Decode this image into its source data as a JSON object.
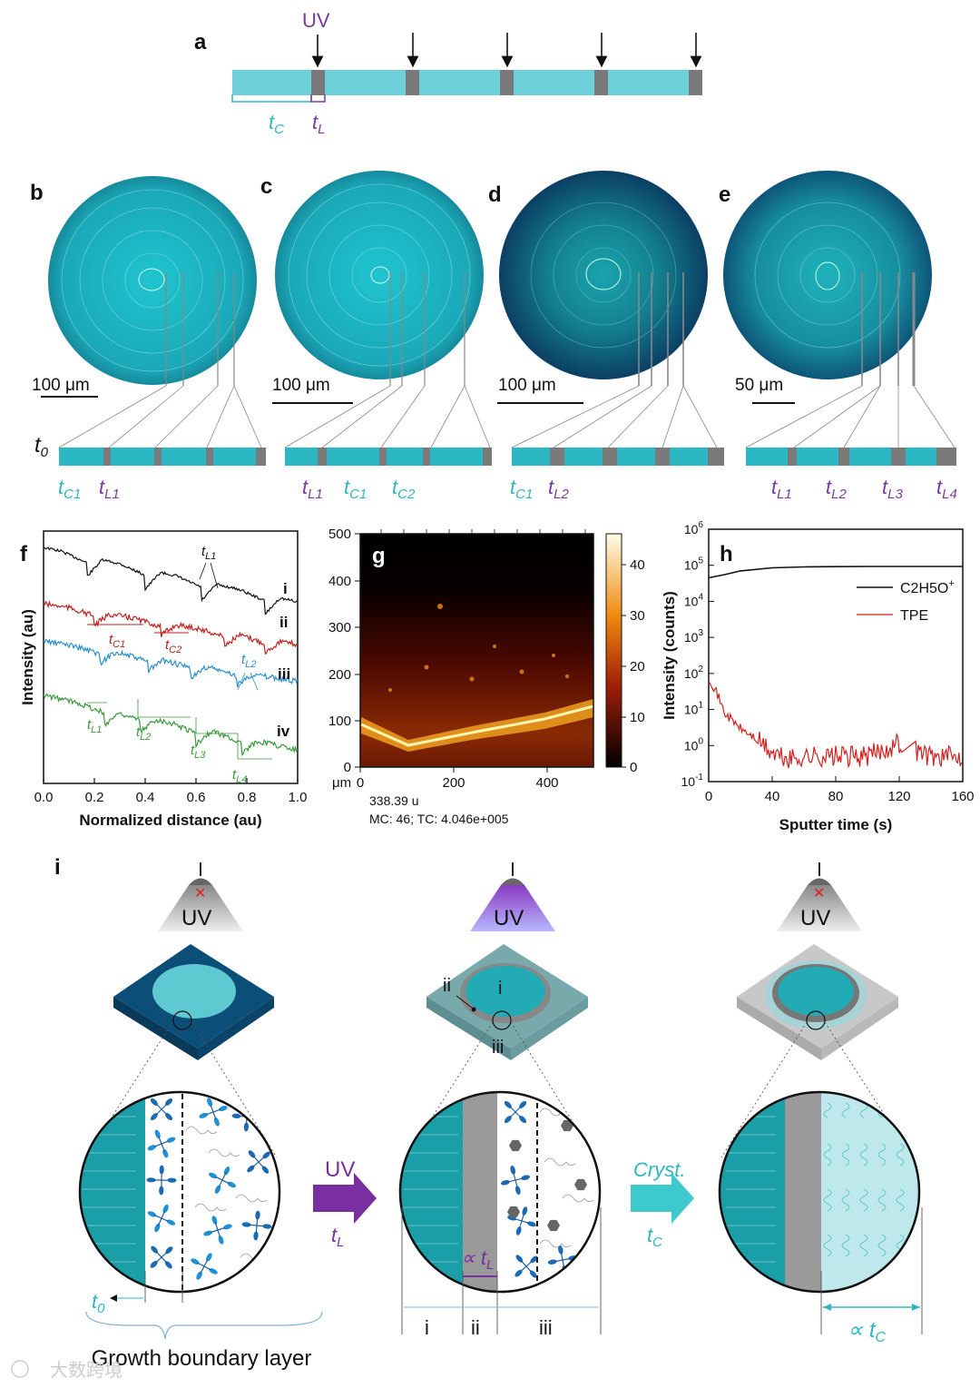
{
  "panels": {
    "a": "a",
    "b": "b",
    "c": "c",
    "d": "d",
    "e": "e",
    "f": "f",
    "g": "g",
    "h": "h",
    "i": "i"
  },
  "panel_a": {
    "uv_label": "UV",
    "tc_label": "t",
    "tc_sub": "C",
    "tl_label": "t",
    "tl_sub": "L"
  },
  "panel_b": {
    "scale": "100 μm",
    "t0": "t",
    "t0_sub": "0",
    "labels": [
      {
        "t": "t",
        "s": "C1",
        "c": "teal"
      },
      {
        "t": "t",
        "s": "L1",
        "c": "purp"
      }
    ]
  },
  "panel_c": {
    "scale": "100 μm",
    "labels": [
      {
        "t": "t",
        "s": "L1",
        "c": "purp"
      },
      {
        "t": "t",
        "s": "C1",
        "c": "teal"
      },
      {
        "t": "t",
        "s": "C2",
        "c": "teal"
      }
    ]
  },
  "panel_d": {
    "scale": "100 μm",
    "labels": [
      {
        "t": "t",
        "s": "C1",
        "c": "teal"
      },
      {
        "t": "t",
        "s": "L2",
        "c": "purp"
      }
    ]
  },
  "panel_e": {
    "scale": "50 μm",
    "labels": [
      {
        "t": "t",
        "s": "L1",
        "c": "purp"
      },
      {
        "t": "t",
        "s": "L2",
        "c": "purp"
      },
      {
        "t": "t",
        "s": "L3",
        "c": "purp"
      },
      {
        "t": "t",
        "s": "L4",
        "c": "purp"
      }
    ]
  },
  "chart_data": [
    {
      "panel": "f",
      "type": "line",
      "xlabel": "Normalized distance (au)",
      "ylabel": "Intensity (au)",
      "xlim": [
        0,
        1
      ],
      "xticks": [
        "0.0",
        "0.2",
        "0.4",
        "0.6",
        "0.8",
        "1.0"
      ],
      "series": [
        {
          "name": "i",
          "color": "#111111",
          "annotations": [
            "t_L1"
          ]
        },
        {
          "name": "ii",
          "color": "#c0221f",
          "annotations": [
            "t_C1",
            "t_C2"
          ]
        },
        {
          "name": "iii",
          "color": "#2a8fca",
          "annotations": [
            "t_L2"
          ]
        },
        {
          "name": "iv",
          "color": "#3a9a3a",
          "annotations": [
            "t_L1",
            "t_L2",
            "t_L3",
            "t_L4"
          ]
        }
      ]
    },
    {
      "panel": "g",
      "type": "heatmap",
      "xunit": "μm",
      "xticks": [
        "0",
        "200",
        "400"
      ],
      "yticks": [
        "0",
        "100",
        "200",
        "300",
        "400",
        "500"
      ],
      "colorbar_ticks": [
        "0",
        "10",
        "20",
        "30",
        "40"
      ],
      "mass": "338.39 u",
      "counts": "MC: 46; TC: 4.046e+005"
    },
    {
      "panel": "h",
      "type": "line",
      "xlabel": "Sputter time (s)",
      "ylabel": "Intensity (counts)",
      "xlim": [
        0,
        160
      ],
      "xticks": [
        "0",
        "40",
        "80",
        "120",
        "160"
      ],
      "yscale": "log",
      "yticks": [
        "10-1",
        "100",
        "101",
        "102",
        "103",
        "104",
        "105",
        "106"
      ],
      "series": [
        {
          "name": "C2H5O+",
          "color": "#111111",
          "x": [
            0,
            10,
            20,
            40,
            60,
            80,
            100,
            120,
            140,
            160
          ],
          "y": [
            45000,
            55000,
            70000,
            85000,
            90000,
            92000,
            93000,
            93000,
            93000,
            93000
          ]
        },
        {
          "name": "TPE",
          "color": "#d42020",
          "x": [
            0,
            5,
            10,
            20,
            30,
            40,
            50,
            60,
            80,
            100,
            120,
            140,
            160
          ],
          "y": [
            80,
            30,
            8,
            3,
            1.5,
            0.6,
            0.4,
            0.5,
            0.5,
            0.5,
            1.2,
            0.5,
            0.5
          ]
        }
      ]
    }
  ],
  "panel_h_legend": {
    "c2h5o": "C2H5O",
    "tpe": "TPE"
  },
  "panel_i": {
    "uv": "UV",
    "roman_i": "i",
    "roman_ii": "ii",
    "roman_iii": "iii",
    "arrow_uv": "UV",
    "arrow_tl": "t",
    "arrow_tl_sub": "L",
    "arrow_cryst": "Cryst.",
    "arrow_tc": "t",
    "arrow_tc_sub": "C",
    "t0": "t",
    "t0_sub": "0",
    "prop_tl": "∝ t",
    "prop_tl_sub": "L",
    "prop_tc": "∝ t",
    "prop_tc_sub": "C",
    "boundary": "Growth boundary layer"
  },
  "watermark": "大数跨境"
}
